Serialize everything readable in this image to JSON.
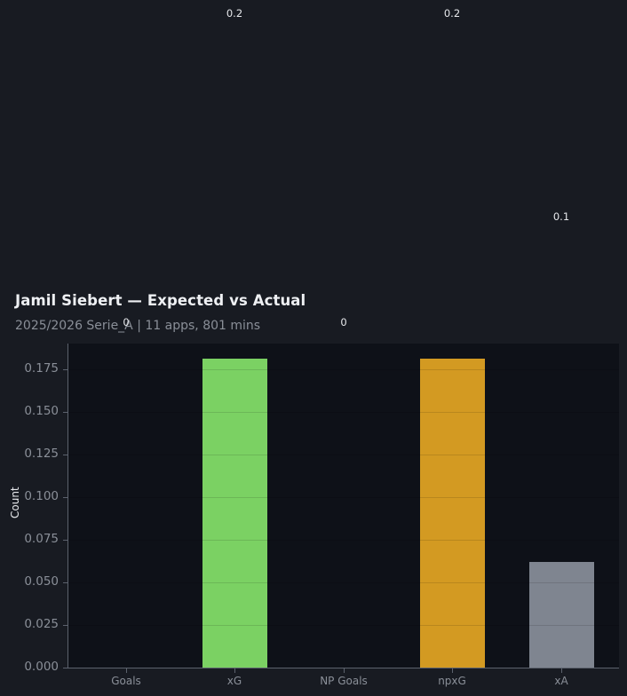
{
  "header": {
    "title": "Jamil Siebert — Expected vs Actual",
    "subtitle": "2025/2026 Serie_A | 11 apps, 801 mins"
  },
  "axes": {
    "ylabel": "Count",
    "yticks": [
      "0.000",
      "0.025",
      "0.050",
      "0.075",
      "0.100",
      "0.125",
      "0.150",
      "0.175"
    ],
    "xticks": [
      "Goals",
      "xG",
      "NP Goals",
      "npxG",
      "xA"
    ]
  },
  "value_labels": [
    "0",
    "0.2",
    "0",
    "0.2",
    "0.1"
  ],
  "colors": {
    "background": "#181b22",
    "plot_bg": "#0e1118",
    "xG": "#7bd163",
    "npxG": "#d39a22",
    "xA": "#7f8590"
  },
  "chart_data": {
    "type": "bar",
    "title": "Jamil Siebert — Expected vs Actual",
    "subtitle": "2025/2026 Serie_A | 11 apps, 801 mins",
    "xlabel": "",
    "ylabel": "Count",
    "categories": [
      "Goals",
      "xG",
      "NP Goals",
      "npxG",
      "xA"
    ],
    "values": [
      0,
      0.181,
      0,
      0.181,
      0.062
    ],
    "data_labels": [
      "0",
      "0.2",
      "0",
      "0.2",
      "0.1"
    ],
    "bar_colors": [
      "#7bd163",
      "#7bd163",
      "#d39a22",
      "#d39a22",
      "#7f8590"
    ],
    "ylim": [
      0,
      0.19
    ],
    "yticks": [
      0,
      0.025,
      0.05,
      0.075,
      0.1,
      0.125,
      0.15,
      0.175
    ],
    "grid": true,
    "legend": null
  }
}
